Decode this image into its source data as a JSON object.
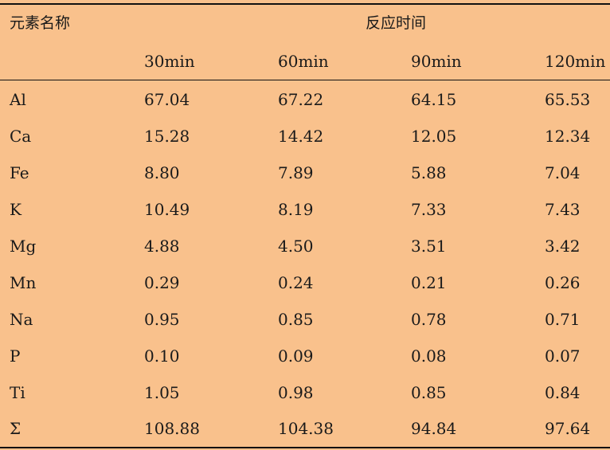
{
  "table": {
    "header_element": "元素名称",
    "header_group": "反应时间",
    "time_columns": [
      "30min",
      "60min",
      "90min",
      "120min"
    ],
    "rows": [
      {
        "element": "Al",
        "values": [
          "67.04",
          "67.22",
          "64.15",
          "65.53"
        ]
      },
      {
        "element": "Ca",
        "values": [
          "15.28",
          "14.42",
          "12.05",
          "12.34"
        ]
      },
      {
        "element": "Fe",
        "values": [
          "8.80",
          "7.89",
          "5.88",
          "7.04"
        ]
      },
      {
        "element": "K",
        "values": [
          "10.49",
          "8.19",
          "7.33",
          "7.43"
        ]
      },
      {
        "element": "Mg",
        "values": [
          "4.88",
          "4.50",
          "3.51",
          "3.42"
        ]
      },
      {
        "element": "Mn",
        "values": [
          "0.29",
          "0.24",
          "0.21",
          "0.26"
        ]
      },
      {
        "element": "Na",
        "values": [
          "0.95",
          "0.85",
          "0.78",
          "0.71"
        ]
      },
      {
        "element": "P",
        "values": [
          "0.10",
          "0.09",
          "0.08",
          "0.07"
        ]
      },
      {
        "element": "Ti",
        "values": [
          "1.05",
          "0.98",
          "0.85",
          "0.84"
        ]
      },
      {
        "element": "Σ",
        "values": [
          "108.88",
          "104.38",
          "94.84",
          "97.64"
        ]
      }
    ]
  },
  "colors": {
    "background": "#f9c18c",
    "rule": "#111111",
    "text": "#1a1a1a"
  }
}
